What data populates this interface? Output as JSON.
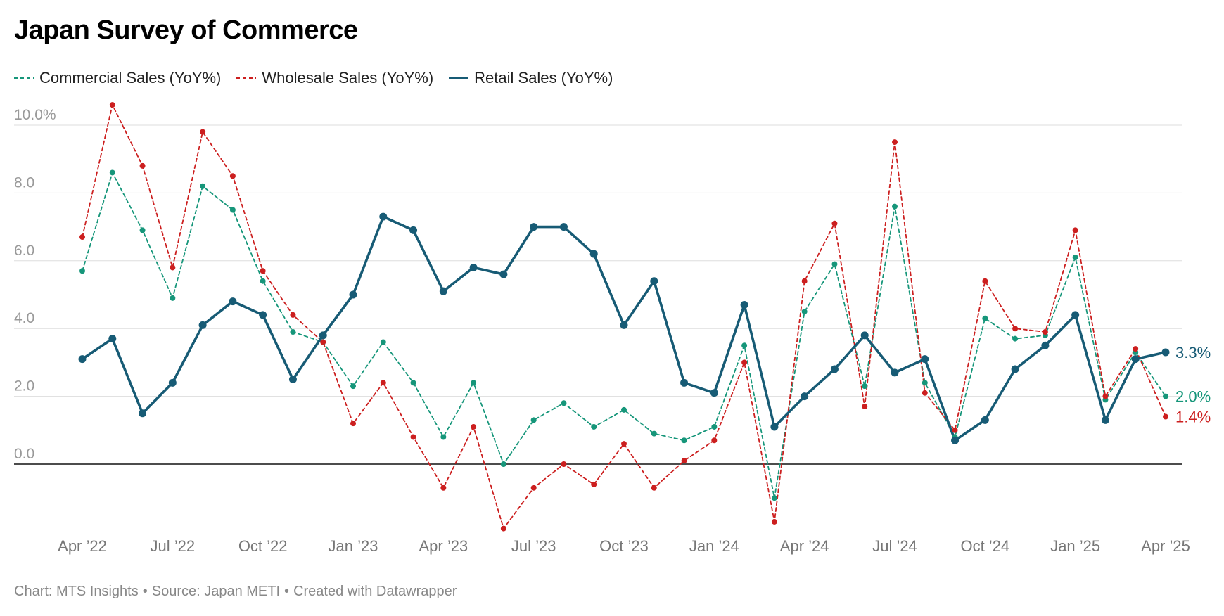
{
  "title": "Japan Survey of Commerce",
  "footer": {
    "chart_credit": "Chart: MTS Insights",
    "source": "Source: Japan METI",
    "created_with": "Created with Datawrapper",
    "separator": "•"
  },
  "chart_data": {
    "type": "line",
    "title": "Japan Survey of Commerce",
    "xlabel": "",
    "ylabel": "",
    "ylim": [
      -2.0,
      10.0
    ],
    "y_ticks": [
      0,
      2,
      4,
      6,
      8,
      10
    ],
    "y_tick_labels": [
      "0.0",
      "2.0",
      "4.0",
      "6.0",
      "8.0",
      "10.0%"
    ],
    "x": [
      "2022-04",
      "2022-05",
      "2022-06",
      "2022-07",
      "2022-08",
      "2022-09",
      "2022-10",
      "2022-11",
      "2022-12",
      "2023-01",
      "2023-02",
      "2023-03",
      "2023-04",
      "2023-05",
      "2023-06",
      "2023-07",
      "2023-08",
      "2023-09",
      "2023-10",
      "2023-11",
      "2023-12",
      "2024-01",
      "2024-02",
      "2024-03",
      "2024-04",
      "2024-05",
      "2024-06",
      "2024-07",
      "2024-08",
      "2024-09",
      "2024-10",
      "2024-11",
      "2024-12",
      "2025-01",
      "2025-02",
      "2025-03",
      "2025-04"
    ],
    "x_tick_labels": [
      "Apr ’22",
      "Jul ’22",
      "Oct ’22",
      "Jan ’23",
      "Apr ’23",
      "Jul ’23",
      "Oct ’23",
      "Jan ’24",
      "Apr ’24",
      "Jul ’24",
      "Oct ’24",
      "Jan ’25",
      "Apr ’25"
    ],
    "grid": true,
    "legend_position": "top-left",
    "series": [
      {
        "name": "Commercial Sales (YoY%)",
        "color": "#16967a",
        "style": "dashed",
        "end_label": "2.0%",
        "values": [
          5.7,
          8.6,
          6.9,
          4.9,
          8.2,
          7.5,
          5.4,
          3.9,
          3.6,
          2.3,
          3.6,
          2.4,
          0.8,
          2.4,
          0.0,
          1.3,
          1.8,
          1.1,
          1.6,
          0.9,
          0.7,
          1.1,
          3.5,
          -1.0,
          4.5,
          5.9,
          2.3,
          7.6,
          2.4,
          0.8,
          4.3,
          3.7,
          3.8,
          6.1,
          1.9,
          3.3,
          2.0
        ]
      },
      {
        "name": "Wholesale Sales (YoY%)",
        "color": "#cc1f1f",
        "style": "dashed",
        "end_label": "1.4%",
        "values": [
          6.7,
          10.6,
          8.8,
          5.8,
          9.8,
          8.5,
          5.7,
          4.4,
          3.6,
          1.2,
          2.4,
          0.8,
          -0.7,
          1.1,
          -1.9,
          -0.7,
          0.0,
          -0.6,
          0.6,
          -0.7,
          0.1,
          0.7,
          3.0,
          -1.7,
          5.4,
          7.1,
          1.7,
          9.5,
          2.1,
          1.0,
          5.4,
          4.0,
          3.9,
          6.9,
          2.0,
          3.4,
          1.4
        ]
      },
      {
        "name": "Retail Sales (YoY%)",
        "color": "#175b75",
        "style": "solid",
        "end_label": "3.3%",
        "values": [
          3.1,
          3.7,
          1.5,
          2.4,
          4.1,
          4.8,
          4.4,
          2.5,
          3.8,
          5.0,
          7.3,
          6.9,
          5.1,
          5.8,
          5.6,
          7.0,
          7.0,
          6.2,
          4.1,
          5.4,
          2.4,
          2.1,
          4.7,
          1.1,
          2.0,
          2.8,
          3.8,
          2.7,
          3.1,
          0.7,
          1.3,
          2.8,
          3.5,
          4.4,
          1.3,
          3.1,
          3.3
        ]
      }
    ]
  }
}
